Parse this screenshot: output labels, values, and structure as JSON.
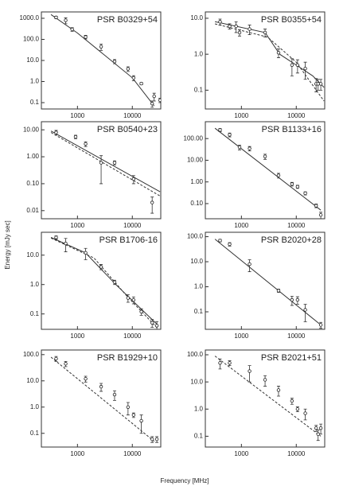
{
  "figure": {
    "xlabel": "Frequency [MHz]",
    "ylabel": "Energy [mJy sec]"
  },
  "chart_data": [
    {
      "type": "scatter",
      "title": "PSR B0329+54",
      "xscale": "log",
      "yscale": "log",
      "xlim": [
        220,
        33000
      ],
      "xticks": [
        1000,
        10000
      ],
      "ylim": [
        0.05,
        2000
      ],
      "yticks": [
        {
          "value": 1000,
          "label": "1000.0"
        },
        {
          "value": 100,
          "label": "100.0"
        },
        {
          "value": 10,
          "label": "10.0"
        },
        {
          "value": 1,
          "label": "1.0"
        },
        0.1
      ],
      "x": [
        408,
        610,
        800,
        1408,
        2700,
        4750,
        8350,
        10550,
        14600,
        23000,
        25000,
        32000
      ],
      "values": [
        1100,
        800,
        300,
        130,
        45,
        9,
        4,
        1.5,
        0.8,
        0.09,
        0.2,
        0.13
      ],
      "errors": [
        150,
        250,
        60,
        25,
        15,
        2,
        1,
        0.4,
        0.1,
        0.03,
        0.08,
        0.03
      ],
      "fits": [
        {
          "style": "solid",
          "x": [
            330,
            1000,
            10000,
            25000
          ],
          "values": [
            1500,
            200,
            1.5,
            0.07
          ]
        }
      ]
    },
    {
      "type": "scatter",
      "title": "PSR B0355+54",
      "xscale": "log",
      "yscale": "log",
      "xlim": [
        220,
        33000
      ],
      "xticks": [
        1000,
        10000
      ],
      "ylim": [
        0.03,
        15
      ],
      "yticks": [
        {
          "value": 10,
          "label": "10.0"
        },
        {
          "value": 1,
          "label": "1.0"
        },
        0.1
      ],
      "x": [
        408,
        610,
        800,
        925,
        1408,
        2700,
        4750,
        8350,
        10550,
        14600,
        23000,
        25000,
        28000
      ],
      "values": [
        8,
        6,
        6,
        4,
        5,
        4,
        1.1,
        0.5,
        0.5,
        0.4,
        0.15,
        0.15,
        0.15
      ],
      "errors": [
        1.5,
        1,
        2,
        0.8,
        1.5,
        1,
        0.3,
        0.25,
        0.2,
        0.2,
        0.06,
        0.05,
        0.05
      ],
      "fits": [
        {
          "style": "solid",
          "x": [
            330,
            2700,
            5000,
            20000,
            32000
          ],
          "values": [
            8,
            4,
            1,
            0.25,
            0.12
          ]
        },
        {
          "style": "dashed",
          "x": [
            330,
            3000,
            10000,
            32000
          ],
          "values": [
            7,
            3,
            0.6,
            0.05
          ]
        }
      ]
    },
    {
      "type": "scatter",
      "title": "PSR B0540+23",
      "xscale": "log",
      "yscale": "log",
      "xlim": [
        220,
        33000
      ],
      "xticks": [
        1000,
        10000
      ],
      "ylim": [
        0.005,
        20
      ],
      "yticks": [
        {
          "value": 10,
          "label": "10.00"
        },
        {
          "value": 1,
          "label": "1.00"
        },
        {
          "value": 0.1,
          "label": "0.10"
        },
        0.01
      ],
      "x": [
        408,
        925,
        1408,
        2700,
        4750,
        10550,
        23000
      ],
      "values": [
        8,
        5.5,
        3,
        0.6,
        0.6,
        0.15,
        0.02
      ],
      "errors": [
        1.5,
        0.8,
        0.6,
        0.5,
        0.1,
        0.05,
        0.012
      ],
      "fits": [
        {
          "style": "solid",
          "x": [
            330,
            32000
          ],
          "values": [
            9,
            0.05
          ]
        },
        {
          "style": "dashed",
          "x": [
            330,
            32000
          ],
          "values": [
            8,
            0.035
          ]
        }
      ]
    },
    {
      "type": "scatter",
      "title": "PSR B1133+16",
      "xscale": "log",
      "yscale": "log",
      "xlim": [
        220,
        33000
      ],
      "xticks": [
        1000,
        10000
      ],
      "ylim": [
        0.02,
        600
      ],
      "yticks": [
        {
          "value": 100,
          "label": "100.00"
        },
        {
          "value": 10,
          "label": "10.00"
        },
        {
          "value": 1,
          "label": "1.00"
        },
        {
          "value": 0.1,
          "label": "0.10"
        }
      ],
      "x": [
        408,
        610,
        925,
        1408,
        2700,
        4750,
        8350,
        10550,
        14600,
        23000,
        28000
      ],
      "values": [
        250,
        150,
        40,
        35,
        15,
        2,
        0.8,
        0.6,
        0.3,
        0.08,
        0.03
      ],
      "errors": [
        40,
        30,
        10,
        8,
        4,
        0.5,
        0.15,
        0.1,
        0.05,
        0.015,
        0.01
      ],
      "fits": [
        {
          "style": "solid",
          "x": [
            330,
            28000
          ],
          "values": [
            300,
            0.05
          ]
        }
      ]
    },
    {
      "type": "scatter",
      "title": "PSR B1706-16",
      "xscale": "log",
      "yscale": "log",
      "xlim": [
        220,
        33000
      ],
      "xticks": [
        1000,
        10000
      ],
      "ylim": [
        0.03,
        60
      ],
      "yticks": [
        {
          "value": 10,
          "label": "10.0"
        },
        {
          "value": 1,
          "label": "1.0"
        },
        0.1
      ],
      "x": [
        408,
        610,
        1408,
        2700,
        4750,
        8350,
        10550,
        14600,
        23000,
        28000
      ],
      "values": [
        40,
        25,
        12,
        4,
        1.2,
        0.35,
        0.3,
        0.12,
        0.05,
        0.04
      ],
      "errors": [
        5,
        12,
        5,
        0.8,
        0.2,
        0.1,
        0.08,
        0.03,
        0.015,
        0.015
      ],
      "fits": [
        {
          "style": "solid",
          "x": [
            330,
            1400,
            5000,
            30000
          ],
          "values": [
            40,
            12,
            1,
            0.04
          ]
        },
        {
          "style": "dashed",
          "x": [
            330,
            2000,
            8000,
            30000
          ],
          "values": [
            38,
            8,
            0.4,
            0.03
          ]
        }
      ]
    },
    {
      "type": "scatter",
      "title": "PSR B2020+28",
      "xscale": "log",
      "yscale": "log",
      "xlim": [
        220,
        33000
      ],
      "xticks": [
        1000,
        10000
      ],
      "ylim": [
        0.02,
        150
      ],
      "yticks": [
        {
          "value": 100,
          "label": "100.0"
        },
        {
          "value": 10,
          "label": "10.0"
        },
        {
          "value": 1,
          "label": "1.0"
        },
        0.1
      ],
      "x": [
        408,
        610,
        1408,
        4750,
        8350,
        10550,
        14600,
        28000
      ],
      "values": [
        70,
        50,
        8,
        0.7,
        0.3,
        0.3,
        0.12,
        0.03
      ],
      "errors": [
        8,
        8,
        4,
        0.1,
        0.12,
        0.1,
        0.08,
        0.008
      ],
      "fits": [
        {
          "style": "solid",
          "x": [
            330,
            28000
          ],
          "values": [
            80,
            0.03
          ]
        }
      ]
    },
    {
      "type": "scatter",
      "title": "PSR B1929+10",
      "xscale": "log",
      "yscale": "log",
      "xlim": [
        220,
        33000
      ],
      "xticks": [
        1000,
        10000
      ],
      "ylim": [
        0.03,
        150
      ],
      "yticks": [
        {
          "value": 100,
          "label": "100.0"
        },
        {
          "value": 10,
          "label": "10.0"
        },
        {
          "value": 1,
          "label": "1.0"
        },
        0.1
      ],
      "x": [
        408,
        610,
        1408,
        2700,
        4750,
        8350,
        10550,
        14600,
        23000,
        28000
      ],
      "values": [
        70,
        45,
        12,
        6,
        3,
        1,
        0.5,
        0.3,
        0.06,
        0.06
      ],
      "errors": [
        15,
        10,
        3,
        2,
        1.2,
        0.5,
        0.1,
        0.2,
        0.015,
        0.015
      ],
      "fits": [
        {
          "style": "dashed",
          "x": [
            330,
            25000
          ],
          "values": [
            80,
            0.05
          ]
        }
      ]
    },
    {
      "type": "scatter",
      "title": "PSR B2021+51",
      "xscale": "log",
      "yscale": "log",
      "xlim": [
        220,
        33000
      ],
      "xticks": [
        1000,
        10000
      ],
      "ylim": [
        0.04,
        150
      ],
      "yticks": [
        {
          "value": 100,
          "label": "100.0"
        },
        {
          "value": 10,
          "label": "10.0"
        },
        {
          "value": 1,
          "label": "1.0"
        },
        0.1
      ],
      "x": [
        408,
        610,
        1408,
        2700,
        4750,
        8350,
        10550,
        14600,
        23000,
        25000,
        28000
      ],
      "values": [
        50,
        50,
        25,
        12,
        5,
        2,
        1,
        0.7,
        0.2,
        0.12,
        0.2
      ],
      "errors": [
        20,
        10,
        15,
        5,
        2,
        0.5,
        0.2,
        0.3,
        0.05,
        0.05,
        0.08
      ],
      "fits": [
        {
          "style": "dashed",
          "x": [
            330,
            28000
          ],
          "values": [
            90,
            0.1
          ]
        }
      ]
    }
  ]
}
